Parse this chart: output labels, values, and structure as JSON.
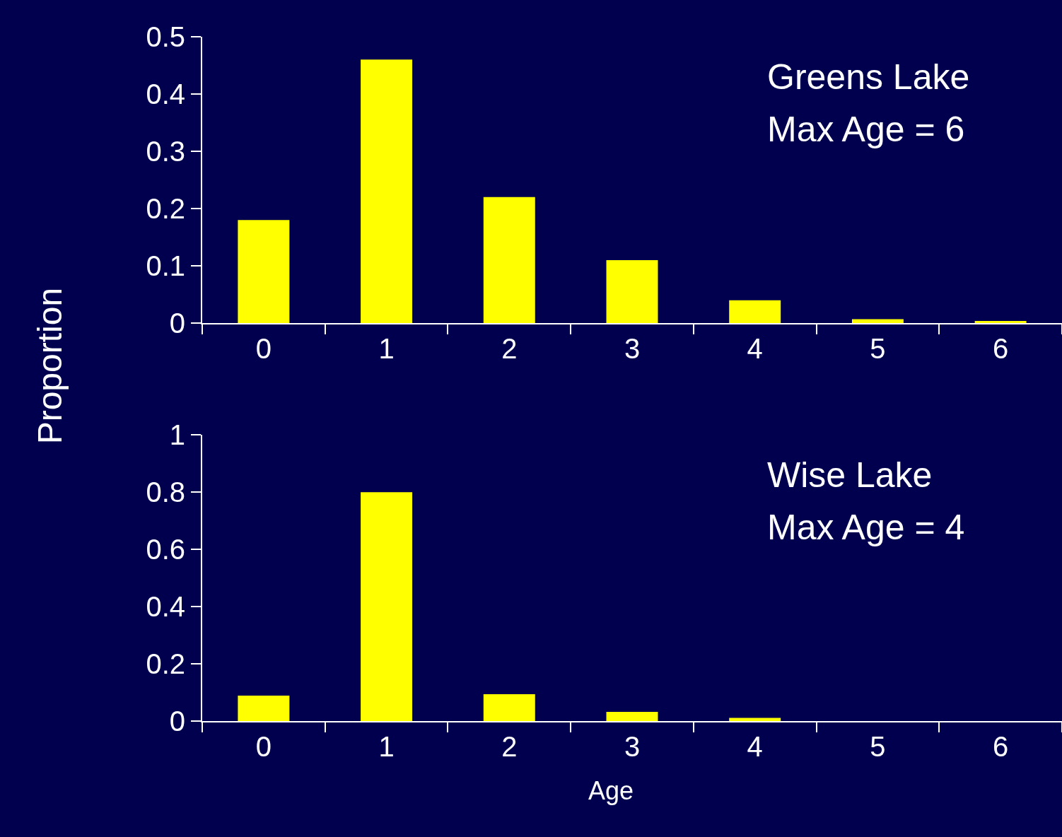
{
  "chart_data": [
    {
      "type": "bar",
      "ylabel": "Proportion",
      "categories": [
        "0",
        "1",
        "2",
        "3",
        "4",
        "5",
        "6"
      ],
      "values": [
        0.18,
        0.46,
        0.22,
        0.11,
        0.04,
        0.007,
        0.004
      ],
      "color": "#ffff00",
      "ylim": [
        0,
        0.5
      ],
      "yticks": [
        0,
        0.1,
        0.2,
        0.3,
        0.4,
        0.5
      ],
      "annotations": [
        "Greens Lake",
        "Max Age = 6"
      ]
    },
    {
      "type": "bar",
      "xlabel": "Age",
      "categories": [
        "0",
        "1",
        "2",
        "3",
        "4",
        "5",
        "6"
      ],
      "values": [
        0.09,
        0.8,
        0.095,
        0.033,
        0.012,
        0,
        0
      ],
      "color": "#ffff00",
      "ylim": [
        0,
        1
      ],
      "yticks": [
        0,
        0.2,
        0.4,
        0.6,
        0.8,
        1
      ],
      "annotations": [
        "Wise Lake",
        "Max Age = 4"
      ]
    }
  ]
}
